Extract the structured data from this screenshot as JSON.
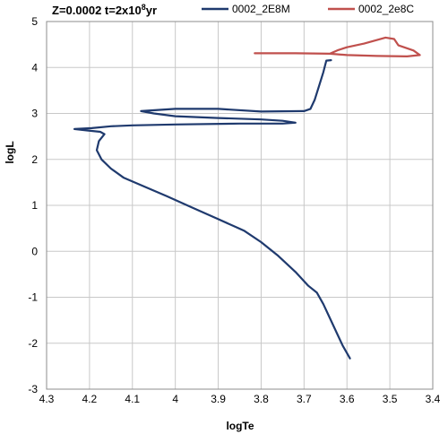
{
  "chart_data": {
    "type": "line",
    "title": {
      "main": "Z=0.0002 t=2x10",
      "sup": "8",
      "tail": "yr"
    },
    "xlabel": "logTe",
    "ylabel": "logL",
    "xlim": [
      4.3,
      3.4
    ],
    "ylim": [
      -3,
      5
    ],
    "x_reversed": true,
    "grid": true,
    "legend_position": "top-right",
    "x_ticks": [
      "4.3",
      "4.2",
      "4.1",
      "4",
      "3.9",
      "3.8",
      "3.7",
      "3.6",
      "3.5",
      "3.4"
    ],
    "y_ticks": [
      "-3",
      "-2",
      "-1",
      "0",
      "1",
      "2",
      "3",
      "4",
      "5"
    ],
    "series": [
      {
        "name": "0002_2E8M",
        "color": "#1f3a6e",
        "points": [
          [
            3.593,
            -2.33
          ],
          [
            3.61,
            -2.05
          ],
          [
            3.625,
            -1.75
          ],
          [
            3.64,
            -1.45
          ],
          [
            3.655,
            -1.15
          ],
          [
            3.67,
            -0.9
          ],
          [
            3.69,
            -0.75
          ],
          [
            3.72,
            -0.45
          ],
          [
            3.76,
            -0.1
          ],
          [
            3.8,
            0.2
          ],
          [
            3.84,
            0.45
          ],
          [
            3.9,
            0.7
          ],
          [
            3.96,
            0.95
          ],
          [
            4.02,
            1.2
          ],
          [
            4.07,
            1.4
          ],
          [
            4.12,
            1.6
          ],
          [
            4.15,
            1.8
          ],
          [
            4.172,
            2.0
          ],
          [
            4.183,
            2.2
          ],
          [
            4.178,
            2.4
          ],
          [
            4.165,
            2.55
          ],
          [
            4.175,
            2.6
          ],
          [
            4.205,
            2.63
          ],
          [
            4.235,
            2.66
          ],
          [
            4.195,
            2.68
          ],
          [
            4.15,
            2.72
          ],
          [
            4.1,
            2.74
          ],
          [
            4.0,
            2.76
          ],
          [
            3.85,
            2.78
          ],
          [
            3.75,
            2.78
          ],
          [
            3.72,
            2.8
          ],
          [
            3.75,
            2.84
          ],
          [
            3.8,
            2.87
          ],
          [
            3.9,
            2.9
          ],
          [
            4.0,
            2.94
          ],
          [
            4.05,
            3.0
          ],
          [
            4.08,
            3.05
          ],
          [
            4.0,
            3.1
          ],
          [
            3.9,
            3.1
          ],
          [
            3.8,
            3.04
          ],
          [
            3.7,
            3.05
          ],
          [
            3.685,
            3.1
          ],
          [
            3.675,
            3.3
          ],
          [
            3.665,
            3.6
          ],
          [
            3.655,
            3.9
          ],
          [
            3.648,
            4.15
          ],
          [
            3.637,
            4.16
          ]
        ]
      },
      {
        "name": "0002_2e8C",
        "color": "#c0504d",
        "points": [
          [
            3.815,
            4.31
          ],
          [
            3.72,
            4.31
          ],
          [
            3.64,
            4.3
          ],
          [
            3.6,
            4.27
          ],
          [
            3.53,
            4.25
          ],
          [
            3.46,
            4.24
          ],
          [
            3.43,
            4.27
          ],
          [
            3.445,
            4.37
          ],
          [
            3.48,
            4.48
          ],
          [
            3.49,
            4.62
          ],
          [
            3.51,
            4.65
          ],
          [
            3.56,
            4.52
          ],
          [
            3.6,
            4.44
          ],
          [
            3.62,
            4.38
          ],
          [
            3.64,
            4.3
          ]
        ]
      }
    ]
  }
}
